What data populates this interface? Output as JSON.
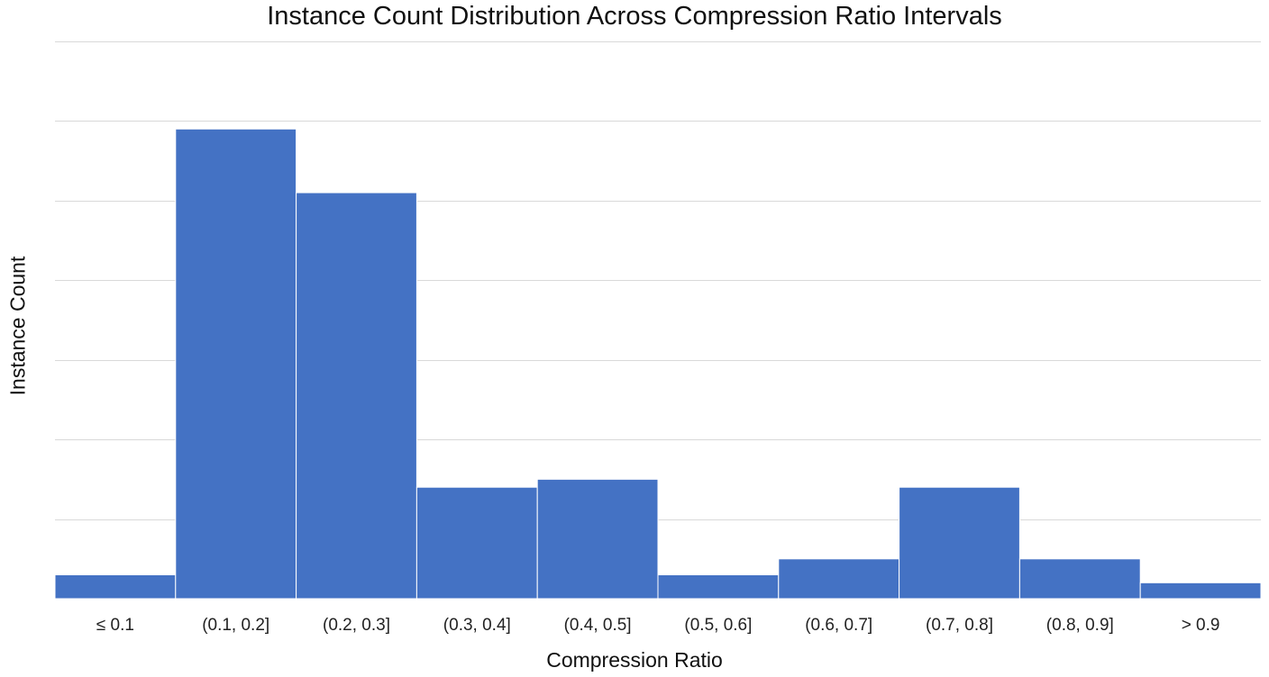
{
  "chart_data": {
    "type": "bar",
    "title": "Instance Count Distribution Across Compression Ratio Intervals",
    "xlabel": "Compression Ratio",
    "ylabel": "Instance Count",
    "categories": [
      "≤ 0.1",
      "(0.1, 0.2]",
      "(0.2, 0.3]",
      "(0.3, 0.4]",
      "(0.4, 0.5]",
      "(0.5, 0.6]",
      "(0.6, 0.7]",
      "(0.7, 0.8]",
      "(0.8, 0.9]",
      "> 0.9"
    ],
    "values": [
      3,
      59,
      51,
      14,
      15,
      3,
      5,
      14,
      5,
      2
    ],
    "ylim": [
      0,
      70
    ],
    "grid": true,
    "y_tick_labels_shown": false,
    "bar_gap": false,
    "bar_color": "#4472C4",
    "gridline_color": "#D9D9D9"
  }
}
